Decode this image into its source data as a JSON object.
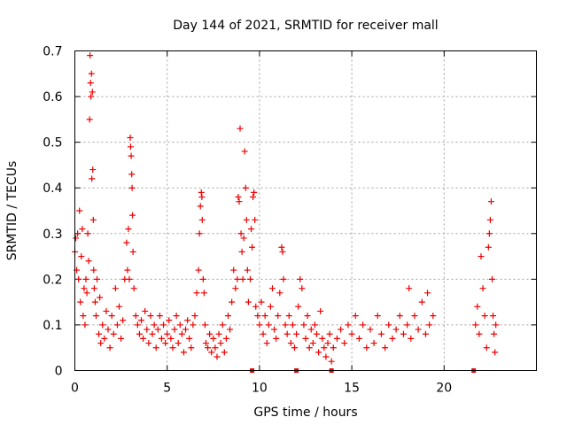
{
  "chart_data": {
    "type": "scatter",
    "title": "Day 144 of 2021, SRMTID for receiver mall",
    "xlabel": "GPS time / hours",
    "ylabel": "SRMTID / TECUs",
    "xlim": [
      0,
      25
    ],
    "ylim": [
      0,
      0.7
    ],
    "xticks": [
      0,
      5,
      10,
      15,
      20
    ],
    "yticks": [
      0,
      0.1,
      0.2,
      0.3,
      0.4,
      0.5,
      0.6,
      0.7
    ],
    "ytick_labels": [
      "0",
      "0.1",
      "0.2",
      "0.3",
      "0.4",
      "0.5",
      "0.6",
      "0.7"
    ],
    "grid": true,
    "marker": "+",
    "color": "#ee0000",
    "series": [
      {
        "name": "SRMTID",
        "points": [
          [
            0.0,
            0.26
          ],
          [
            0.05,
            0.29
          ],
          [
            0.1,
            0.22
          ],
          [
            0.15,
            0.3
          ],
          [
            0.2,
            0.2
          ],
          [
            0.25,
            0.35
          ],
          [
            0.3,
            0.15
          ],
          [
            0.35,
            0.25
          ],
          [
            0.4,
            0.31
          ],
          [
            0.45,
            0.12
          ],
          [
            0.5,
            0.18
          ],
          [
            0.55,
            0.1
          ],
          [
            0.6,
            0.2
          ],
          [
            0.65,
            0.17
          ],
          [
            0.7,
            0.3
          ],
          [
            0.75,
            0.24
          ],
          [
            0.8,
            0.55
          ],
          [
            0.82,
            0.69
          ],
          [
            0.85,
            0.63
          ],
          [
            0.87,
            0.6
          ],
          [
            0.9,
            0.65
          ],
          [
            0.92,
            0.42
          ],
          [
            0.95,
            0.61
          ],
          [
            0.97,
            0.44
          ],
          [
            1.0,
            0.33
          ],
          [
            1.02,
            0.22
          ],
          [
            1.05,
            0.18
          ],
          [
            1.1,
            0.15
          ],
          [
            1.15,
            0.12
          ],
          [
            1.2,
            0.2
          ],
          [
            1.3,
            0.08
          ],
          [
            1.35,
            0.16
          ],
          [
            1.4,
            0.06
          ],
          [
            1.5,
            0.1
          ],
          [
            1.6,
            0.07
          ],
          [
            1.7,
            0.13
          ],
          [
            1.8,
            0.09
          ],
          [
            1.9,
            0.05
          ],
          [
            2.0,
            0.12
          ],
          [
            2.1,
            0.08
          ],
          [
            2.2,
            0.18
          ],
          [
            2.3,
            0.1
          ],
          [
            2.4,
            0.14
          ],
          [
            2.5,
            0.07
          ],
          [
            2.6,
            0.11
          ],
          [
            2.7,
            0.2
          ],
          [
            2.8,
            0.28
          ],
          [
            2.85,
            0.22
          ],
          [
            2.9,
            0.31
          ],
          [
            2.95,
            0.2
          ],
          [
            3.0,
            0.51
          ],
          [
            3.02,
            0.49
          ],
          [
            3.05,
            0.47
          ],
          [
            3.08,
            0.43
          ],
          [
            3.1,
            0.4
          ],
          [
            3.12,
            0.34
          ],
          [
            3.15,
            0.26
          ],
          [
            3.2,
            0.18
          ],
          [
            3.3,
            0.12
          ],
          [
            3.4,
            0.1
          ],
          [
            3.5,
            0.08
          ],
          [
            3.6,
            0.11
          ],
          [
            3.7,
            0.07
          ],
          [
            3.8,
            0.13
          ],
          [
            3.9,
            0.09
          ],
          [
            4.0,
            0.06
          ],
          [
            4.1,
            0.12
          ],
          [
            4.2,
            0.08
          ],
          [
            4.3,
            0.1
          ],
          [
            4.4,
            0.05
          ],
          [
            4.5,
            0.09
          ],
          [
            4.6,
            0.12
          ],
          [
            4.7,
            0.07
          ],
          [
            4.8,
            0.1
          ],
          [
            4.9,
            0.06
          ],
          [
            5.0,
            0.08
          ],
          [
            5.1,
            0.11
          ],
          [
            5.2,
            0.07
          ],
          [
            5.3,
            0.05
          ],
          [
            5.4,
            0.09
          ],
          [
            5.5,
            0.12
          ],
          [
            5.6,
            0.06
          ],
          [
            5.7,
            0.1
          ],
          [
            5.8,
            0.08
          ],
          [
            5.9,
            0.04
          ],
          [
            6.0,
            0.09
          ],
          [
            6.1,
            0.11
          ],
          [
            6.2,
            0.07
          ],
          [
            6.3,
            0.05
          ],
          [
            6.4,
            0.1
          ],
          [
            6.5,
            0.12
          ],
          [
            6.6,
            0.17
          ],
          [
            6.7,
            0.22
          ],
          [
            6.75,
            0.3
          ],
          [
            6.8,
            0.36
          ],
          [
            6.85,
            0.39
          ],
          [
            6.88,
            0.38
          ],
          [
            6.9,
            0.33
          ],
          [
            6.95,
            0.2
          ],
          [
            7.0,
            0.17
          ],
          [
            7.05,
            0.1
          ],
          [
            7.1,
            0.06
          ],
          [
            7.2,
            0.05
          ],
          [
            7.3,
            0.08
          ],
          [
            7.4,
            0.04
          ],
          [
            7.5,
            0.07
          ],
          [
            7.6,
            0.05
          ],
          [
            7.7,
            0.03
          ],
          [
            7.8,
            0.08
          ],
          [
            7.9,
            0.06
          ],
          [
            8.0,
            0.1
          ],
          [
            8.1,
            0.04
          ],
          [
            8.2,
            0.07
          ],
          [
            8.3,
            0.12
          ],
          [
            8.4,
            0.09
          ],
          [
            8.5,
            0.15
          ],
          [
            8.6,
            0.22
          ],
          [
            8.7,
            0.18
          ],
          [
            8.8,
            0.2
          ],
          [
            8.85,
            0.38
          ],
          [
            8.9,
            0.37
          ],
          [
            8.95,
            0.53
          ],
          [
            9.0,
            0.3
          ],
          [
            9.05,
            0.26
          ],
          [
            9.1,
            0.2
          ],
          [
            9.15,
            0.29
          ],
          [
            9.2,
            0.48
          ],
          [
            9.25,
            0.4
          ],
          [
            9.3,
            0.33
          ],
          [
            9.35,
            0.22
          ],
          [
            9.4,
            0.15
          ],
          [
            9.5,
            0.2
          ],
          [
            9.55,
            0.31
          ],
          [
            9.6,
            0.27
          ],
          [
            9.65,
            0.38
          ],
          [
            9.7,
            0.39
          ],
          [
            9.75,
            0.33
          ],
          [
            9.8,
            0.14
          ],
          [
            9.9,
            0.12
          ],
          [
            10.0,
            0.1
          ],
          [
            10.1,
            0.15
          ],
          [
            10.2,
            0.08
          ],
          [
            10.3,
            0.12
          ],
          [
            10.4,
            0.06
          ],
          [
            10.5,
            0.1
          ],
          [
            10.6,
            0.14
          ],
          [
            10.7,
            0.18
          ],
          [
            10.8,
            0.09
          ],
          [
            10.9,
            0.07
          ],
          [
            11.0,
            0.12
          ],
          [
            11.1,
            0.17
          ],
          [
            11.2,
            0.27
          ],
          [
            11.25,
            0.26
          ],
          [
            11.3,
            0.2
          ],
          [
            11.4,
            0.1
          ],
          [
            11.5,
            0.08
          ],
          [
            11.6,
            0.12
          ],
          [
            11.7,
            0.06
          ],
          [
            11.8,
            0.1
          ],
          [
            11.9,
            0.05
          ],
          [
            12.0,
            0.08
          ],
          [
            12.1,
            0.14
          ],
          [
            12.2,
            0.2
          ],
          [
            12.3,
            0.18
          ],
          [
            12.4,
            0.1
          ],
          [
            12.5,
            0.07
          ],
          [
            12.6,
            0.12
          ],
          [
            12.7,
            0.05
          ],
          [
            12.8,
            0.09
          ],
          [
            12.9,
            0.06
          ],
          [
            13.0,
            0.1
          ],
          [
            13.1,
            0.08
          ],
          [
            13.2,
            0.04
          ],
          [
            13.3,
            0.13
          ],
          [
            13.4,
            0.07
          ],
          [
            13.5,
            0.05
          ],
          [
            13.6,
            0.03
          ],
          [
            13.7,
            0.06
          ],
          [
            13.8,
            0.08
          ],
          [
            13.9,
            0.02
          ],
          [
            14.0,
            0.05
          ],
          [
            14.2,
            0.07
          ],
          [
            14.4,
            0.09
          ],
          [
            14.6,
            0.06
          ],
          [
            14.8,
            0.1
          ],
          [
            15.0,
            0.08
          ],
          [
            15.2,
            0.12
          ],
          [
            15.4,
            0.07
          ],
          [
            15.6,
            0.1
          ],
          [
            15.8,
            0.05
          ],
          [
            16.0,
            0.09
          ],
          [
            16.2,
            0.06
          ],
          [
            16.4,
            0.12
          ],
          [
            16.6,
            0.08
          ],
          [
            16.8,
            0.05
          ],
          [
            17.0,
            0.1
          ],
          [
            17.2,
            0.07
          ],
          [
            17.4,
            0.09
          ],
          [
            17.6,
            0.12
          ],
          [
            17.8,
            0.08
          ],
          [
            18.0,
            0.1
          ],
          [
            18.1,
            0.18
          ],
          [
            18.2,
            0.07
          ],
          [
            18.4,
            0.12
          ],
          [
            18.6,
            0.09
          ],
          [
            18.8,
            0.15
          ],
          [
            19.0,
            0.08
          ],
          [
            19.1,
            0.17
          ],
          [
            19.2,
            0.1
          ],
          [
            19.4,
            0.12
          ],
          [
            21.7,
            0.1
          ],
          [
            21.8,
            0.14
          ],
          [
            21.9,
            0.08
          ],
          [
            22.0,
            0.25
          ],
          [
            22.1,
            0.18
          ],
          [
            22.2,
            0.12
          ],
          [
            22.3,
            0.05
          ],
          [
            22.4,
            0.27
          ],
          [
            22.45,
            0.3
          ],
          [
            22.5,
            0.33
          ],
          [
            22.55,
            0.37
          ],
          [
            22.6,
            0.2
          ],
          [
            22.65,
            0.12
          ],
          [
            22.7,
            0.08
          ],
          [
            22.75,
            0.04
          ],
          [
            22.8,
            0.1
          ]
        ]
      }
    ],
    "baseline_gap_markers": [
      9.6,
      12.0,
      13.9,
      21.6
    ]
  }
}
